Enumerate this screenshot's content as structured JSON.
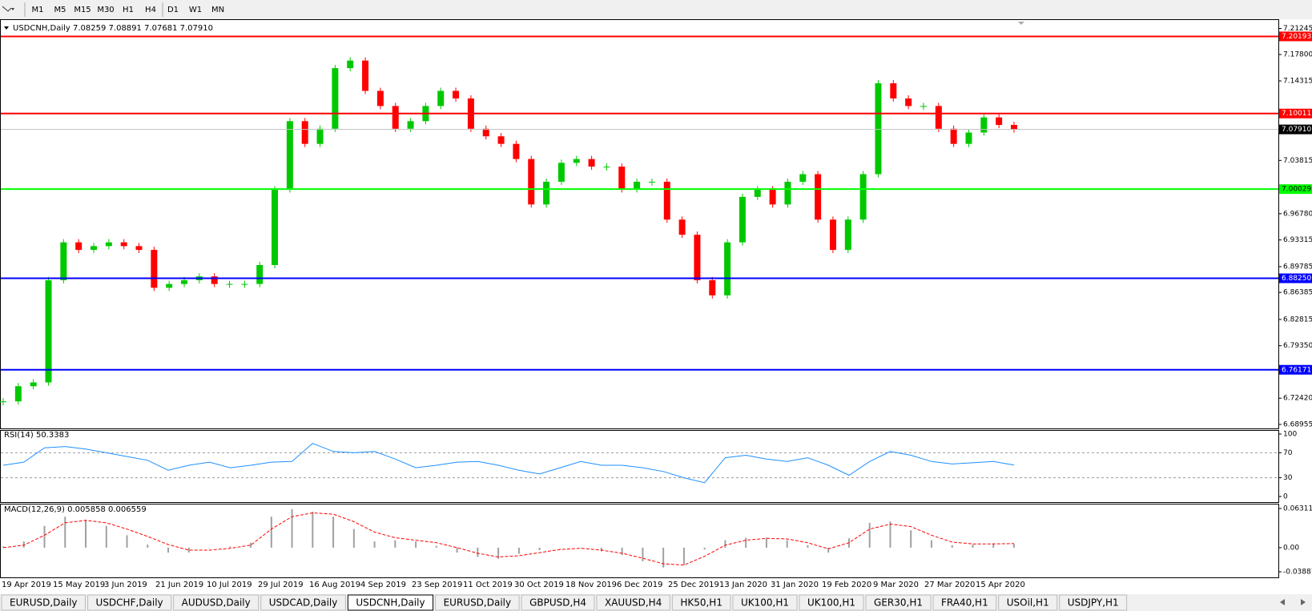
{
  "toolbar": {
    "timeframes": [
      "M1",
      "M5",
      "M15",
      "M30",
      "H1",
      "H4",
      "D1",
      "W1",
      "MN"
    ]
  },
  "chart_data": {
    "type": "candlestick",
    "title": "USDCNH,Daily  7.08259 7.08891 7.07681 7.07910",
    "values": [
      6.72,
      6.74,
      6.745,
      6.88,
      6.93,
      6.92,
      6.925,
      6.93,
      6.925,
      6.92,
      6.87,
      6.875,
      6.88,
      6.885,
      6.875,
      6.875,
      6.875,
      6.9,
      7.0,
      7.09,
      7.06,
      7.08,
      7.16,
      7.17,
      7.13,
      7.11,
      7.08,
      7.09,
      7.11,
      7.13,
      7.12,
      7.08,
      7.07,
      7.06,
      7.04,
      6.98,
      7.01,
      7.035,
      7.04,
      7.03,
      7.03,
      7.0,
      7.01,
      7.01,
      6.96,
      6.94,
      6.88,
      6.86,
      6.93,
      6.99,
      7.0,
      6.98,
      7.01,
      7.02,
      6.96,
      6.92,
      6.96,
      7.02,
      7.14,
      7.12,
      7.11,
      7.11,
      7.08,
      7.06,
      7.075,
      7.095,
      7.085,
      7.0791
    ],
    "up_color": "#00c800",
    "down_color": "#ff0000",
    "ylim": [
      6.68955,
      7.21245
    ],
    "yticks": [
      7.21245,
      {
        "value": 7.178,
        "label": "7.17800"
      },
      7.14315,
      7.03815,
      {
        "value": 6.9678,
        "label": "6.96780"
      },
      6.93315,
      6.89785,
      6.86385,
      6.82815,
      {
        "value": 6.7935,
        "label": "6.79350"
      },
      {
        "value": 6.7242,
        "label": "6.72420"
      },
      6.68955
    ],
    "levels": [
      {
        "value": 7.20193,
        "color": "#ff0000"
      },
      {
        "value": 7.10011,
        "color": "#ff0000"
      },
      {
        "value": 7.0791,
        "label": "7.07910",
        "color": "#c0c0c0"
      },
      {
        "value": 7.00029,
        "color": "#00ff00"
      },
      {
        "value": 6.8825,
        "label": "6.88250",
        "color": "#0000ff"
      },
      {
        "value": 6.76171,
        "color": "#0000ff"
      }
    ],
    "date_labels": [
      "19 Apr 2019",
      "15 May 2019",
      "3 Jun 2019",
      "21 Jun 2019",
      "10 Jul 2019",
      "29 Jul 2019",
      "16 Aug 2019",
      "4 Sep 2019",
      "23 Sep 2019",
      "11 Oct 2019",
      "30 Oct 2019",
      "18 Nov 2019",
      "6 Dec 2019",
      "25 Dec 2019",
      "13 Jan 2020",
      "31 Jan 2020",
      "19 Feb 2020",
      "9 Mar 2020",
      "27 Mar 2020",
      "15 Apr 2020"
    ]
  },
  "rsi": {
    "title": "RSI(14) 50.3383",
    "color": "#1e90ff",
    "values": [
      50,
      55,
      78,
      80,
      76,
      70,
      64,
      58,
      42,
      50,
      55,
      46,
      50,
      55,
      56,
      85,
      72,
      70,
      72,
      60,
      46,
      50,
      55,
      56,
      50,
      42,
      36,
      46,
      56,
      50,
      50,
      46,
      40,
      30,
      22,
      62,
      66,
      60,
      56,
      62,
      50,
      34,
      56,
      72,
      66,
      56,
      52,
      54,
      56,
      50.3383
    ],
    "ylim": [
      0,
      100
    ],
    "yticks": [
      100,
      70,
      30,
      0
    ]
  },
  "macd": {
    "title": "MACD(12,26,9) 0.005858 0.006559",
    "main_color": "#a0a0a0",
    "signal_color": "#ff0000",
    "main_values": [
      0.002,
      0.01,
      0.035,
      0.05,
      0.045,
      0.035,
      0.02,
      0.005,
      -0.008,
      -0.008,
      0.0,
      0.002,
      0.008,
      0.05,
      0.062,
      0.058,
      0.05,
      0.03,
      0.01,
      0.012,
      0.01,
      0.003,
      -0.008,
      -0.015,
      -0.018,
      -0.01,
      -0.004,
      0.0,
      0.0,
      -0.006,
      -0.012,
      -0.022,
      -0.032,
      -0.028,
      -0.003,
      0.012,
      0.016,
      0.016,
      0.012,
      0.004,
      -0.008,
      0.015,
      0.04,
      0.042,
      0.028,
      0.012,
      0.004,
      0.005,
      0.007,
      0.005858
    ],
    "signal_values": [
      0.0,
      0.004,
      0.02,
      0.04,
      0.044,
      0.04,
      0.03,
      0.018,
      0.005,
      -0.004,
      -0.004,
      -0.001,
      0.004,
      0.03,
      0.05,
      0.056,
      0.054,
      0.042,
      0.025,
      0.016,
      0.012,
      0.008,
      0.0,
      -0.009,
      -0.015,
      -0.013,
      -0.008,
      -0.003,
      -0.001,
      -0.004,
      -0.009,
      -0.017,
      -0.026,
      -0.028,
      -0.014,
      0.004,
      0.012,
      0.015,
      0.014,
      0.008,
      -0.002,
      0.008,
      0.03,
      0.038,
      0.034,
      0.02,
      0.009,
      0.006,
      0.006,
      0.006559
    ],
    "ylim": [
      -0.038872,
      0.063113
    ],
    "yticks": [
      0.063113,
      {
        "value": 0,
        "label": "0.00"
      },
      -0.038872
    ]
  },
  "tabs": [
    "EURUSD,Daily",
    "USDCHF,Daily",
    "AUDUSD,Daily",
    "USDCAD,Daily",
    "USDCNH,Daily",
    "EURUSD,Daily",
    "GBPUSD,H4",
    "XAUUSD,H4",
    "HK50,H1",
    "UK100,H1",
    "UK100,H1",
    "GER30,H1",
    "FRA40,H1",
    "USOil,H1",
    "USDJPY,H1"
  ],
  "active_tab": 4
}
